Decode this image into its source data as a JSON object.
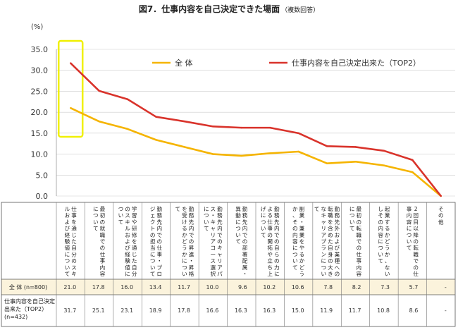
{
  "title": "図7．仕事内容を自己決定できた場面",
  "title_note": "（複数回答）",
  "y_unit": "(%)",
  "table_row_labels": {
    "all": "全 体 (n=800)",
    "top2_line1": "仕事内容を自己決定",
    "top2_line2": "出来た（TOP2）",
    "top2_line3": "(n=432)"
  },
  "colors": {
    "all": "#f5b400",
    "top2": "#d9332b",
    "highlight": "#f0f000",
    "table_row_bg": "#fbf3dc",
    "grid": "#cccccc"
  },
  "chart_data": {
    "type": "line",
    "ylabel": "(%)",
    "ylim": [
      0,
      35
    ],
    "yticks": [
      "0.0",
      "5.0",
      "10.0",
      "15.0",
      "20.0",
      "25.0",
      "30.0",
      "35.0"
    ],
    "legend_position": "top-right",
    "grid": "horizontal",
    "categories": [
      "仕事を通じた自分のスキルおよび経験値について",
      "最初の就職での仕事内容について",
      "学習や研修を通じた自分のスキルおよび経験値について",
      "勤務先内での仕事・プロジェクトの担当について",
      "勤務先内での昇進・昇格を受けるかどうかについて",
      "勤務先内でのキャリアパス・キャリアコース選択について",
      "勤務先内での部署配属・異動について",
      "勤務先内での自らの力による仕事の開拓や立ち上げについて",
      "副業・兼業をやるかどうか、その内容について",
      "勤務先外および業種への転職を含めた自身の大きなキャリアプランについて",
      "最初の転職での仕事内容について",
      "起業するかどうか、ないしその内容について",
      "2回目以降の転職での仕事内容について",
      "その他"
    ],
    "series": [
      {
        "name": "全 体",
        "values": [
          21.0,
          17.8,
          16.0,
          13.4,
          11.7,
          10.0,
          9.6,
          10.2,
          10.6,
          7.8,
          8.2,
          7.3,
          5.7,
          0.0
        ],
        "labels": [
          "21.0",
          "17.8",
          "16.0",
          "13.4",
          "11.7",
          "10.0",
          "9.6",
          "10.2",
          "10.6",
          "7.8",
          "8.2",
          "7.3",
          "5.7",
          "-"
        ]
      },
      {
        "name": "仕事内容を自己決定出来た（TOP2）",
        "values": [
          31.7,
          25.1,
          23.1,
          18.9,
          17.8,
          16.6,
          16.3,
          16.3,
          15.0,
          11.9,
          11.7,
          10.8,
          8.6,
          0.0
        ],
        "labels": [
          "31.7",
          "25.1",
          "23.1",
          "18.9",
          "17.8",
          "16.6",
          "16.3",
          "16.3",
          "15.0",
          "11.9",
          "11.7",
          "10.8",
          "8.6",
          "-"
        ]
      }
    ]
  }
}
